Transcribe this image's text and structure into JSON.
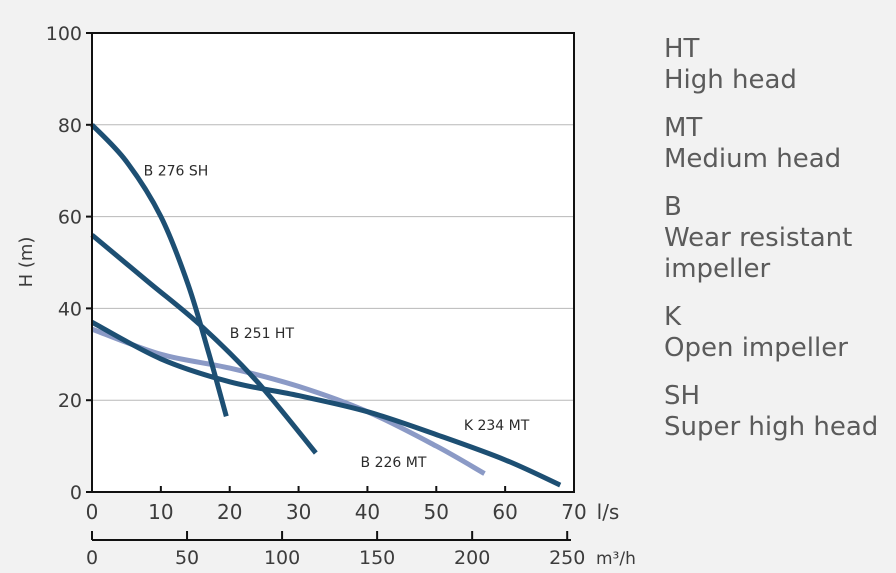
{
  "chart_data": {
    "type": "line",
    "title": "",
    "ylabel": "H (m)",
    "xlabel": "l/s",
    "x2label": "m³/h",
    "xlim": [
      0,
      70
    ],
    "ylim": [
      0,
      100
    ],
    "x2lim": [
      0,
      252
    ],
    "xticks": [
      0,
      10,
      20,
      30,
      40,
      50,
      60,
      70
    ],
    "yticks": [
      0,
      20,
      40,
      60,
      80,
      100
    ],
    "x2ticks": [
      0,
      50,
      100,
      150,
      200,
      250
    ],
    "grid": "horizontal",
    "series": [
      {
        "name": "B 276 SH",
        "color": "#1d4f73",
        "label_at": [
          7.5,
          69
        ],
        "points": [
          [
            0,
            80
          ],
          [
            5,
            72
          ],
          [
            10,
            60
          ],
          [
            14,
            45
          ],
          [
            17,
            30
          ],
          [
            19.5,
            16.5
          ]
        ]
      },
      {
        "name": "B 251 HT",
        "color": "#1d4f73",
        "label_at": [
          20,
          33.5
        ],
        "points": [
          [
            0,
            56
          ],
          [
            8,
            46
          ],
          [
            16,
            36
          ],
          [
            24,
            24
          ],
          [
            32.5,
            8.5
          ]
        ]
      },
      {
        "name": "K 234 MT",
        "color": "#1d4f73",
        "label_at": [
          54,
          13.5
        ],
        "points": [
          [
            0,
            37
          ],
          [
            10,
            29
          ],
          [
            20,
            24
          ],
          [
            30,
            21
          ],
          [
            40,
            17.5
          ],
          [
            50,
            12.5
          ],
          [
            60,
            7
          ],
          [
            68,
            1.5
          ]
        ]
      },
      {
        "name": "B 226 MT",
        "color": "#8b9ac6",
        "label_at": [
          39,
          5.5
        ],
        "points": [
          [
            0,
            35.5
          ],
          [
            10,
            30
          ],
          [
            20,
            27
          ],
          [
            30,
            23
          ],
          [
            40,
            17.5
          ],
          [
            50,
            10
          ],
          [
            57,
            4
          ]
        ]
      }
    ]
  },
  "legend": [
    {
      "code": "HT",
      "desc": "High head"
    },
    {
      "code": "MT",
      "desc": "Medium head"
    },
    {
      "code": "B",
      "desc": "Wear resistant impeller"
    },
    {
      "code": "K",
      "desc": "Open impeller"
    },
    {
      "code": "SH",
      "desc": "Super high head"
    }
  ]
}
